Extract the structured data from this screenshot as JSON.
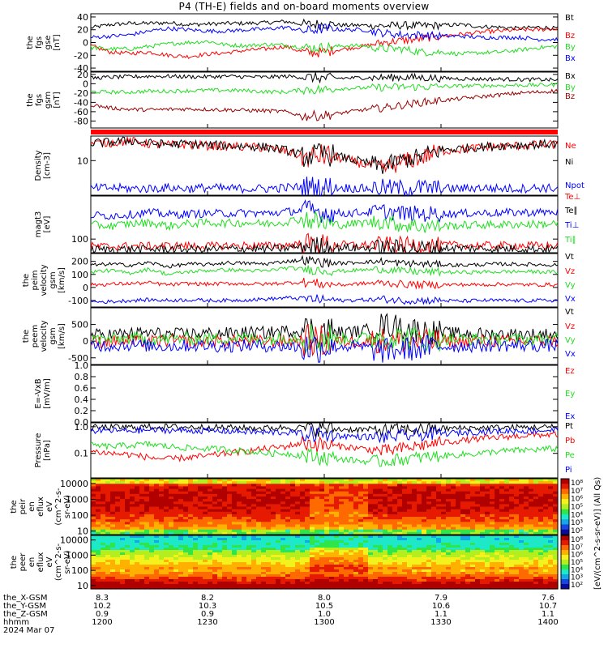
{
  "title": "P4 (TH-E) fields and on-board moments overview",
  "footer": {
    "rows": [
      {
        "label": "the_X-GSM",
        "values": [
          "8.3",
          "8.2",
          "8.0",
          "7.9",
          "7.6"
        ]
      },
      {
        "label": "the_Y-GSM",
        "values": [
          "10.2",
          "10.3",
          "10.5",
          "10.6",
          "10.7"
        ]
      },
      {
        "label": "the_Z-GSM",
        "values": [
          "0.9",
          "0.9",
          "1.0",
          "1.1",
          "1.1"
        ]
      },
      {
        "label": "hhmm",
        "values": [
          "1200",
          "1230",
          "1300",
          "1330",
          "1400"
        ]
      }
    ],
    "date": "2024 Mar 07"
  },
  "colors": {
    "black": "#000000",
    "red": "#ff0000",
    "green": "#22dd22",
    "blue": "#0000ff",
    "darkred": "#990000"
  },
  "chart_data": [
    {
      "type": "line",
      "id": "fgs_gse",
      "ylabel": [
        "the",
        "fgs",
        "gse",
        "[nT]"
      ],
      "ylim": [
        -45,
        45
      ],
      "ticks": [
        "40",
        "20",
        "0",
        "-20",
        "-40"
      ],
      "series": [
        {
          "name": "Bt",
          "color": "black",
          "values": [
            23,
            28,
            30,
            30,
            31,
            28,
            29,
            30,
            30,
            31,
            33,
            28,
            29,
            27,
            27,
            26,
            27,
            26,
            27,
            28,
            25,
            24,
            22,
            24,
            22
          ]
        },
        {
          "name": "Bz",
          "color": "red",
          "values": [
            -5,
            -15,
            -17,
            -15,
            -20,
            -22,
            -18,
            -16,
            -12,
            -10,
            -6,
            -16,
            -15,
            -10,
            -6,
            0,
            3,
            6,
            10,
            13,
            16,
            18,
            20,
            20,
            22
          ]
        },
        {
          "name": "By",
          "color": "green",
          "values": [
            -8,
            -10,
            -10,
            -6,
            -2,
            0,
            2,
            -4,
            -5,
            -3,
            -4,
            -8,
            -8,
            -5,
            -5,
            -10,
            -10,
            -15,
            -15,
            -18,
            -16,
            -15,
            -12,
            -8,
            -6
          ]
        },
        {
          "name": "Bx",
          "color": "blue",
          "values": [
            8,
            10,
            12,
            18,
            22,
            20,
            18,
            18,
            20,
            21,
            24,
            18,
            22,
            20,
            20,
            15,
            12,
            12,
            10,
            10,
            8,
            8,
            8,
            5,
            5
          ]
        }
      ]
    },
    {
      "type": "line",
      "id": "fgs_gsm",
      "ylabel": [
        "the",
        "fgs",
        "gsm",
        "[nT]"
      ],
      "ylim": [
        -95,
        25
      ],
      "ticks": [
        "20",
        "0",
        "-20",
        "-40",
        "-60",
        "-80"
      ],
      "series": [
        {
          "name": "Bx",
          "color": "black",
          "values": [
            12,
            14,
            15,
            16,
            16,
            15,
            15,
            16,
            15,
            14,
            16,
            14,
            12,
            12,
            13,
            13,
            14,
            13,
            12,
            11,
            10,
            10,
            9,
            9,
            8
          ]
        },
        {
          "name": "By",
          "color": "green",
          "values": [
            -17,
            -18,
            -18,
            -16,
            -16,
            -15,
            -14,
            -14,
            -15,
            -17,
            -18,
            -12,
            -13,
            -10,
            -9,
            -8,
            -7,
            -7,
            -6,
            -5,
            -4,
            -4,
            -3,
            -3,
            -2
          ]
        },
        {
          "name": "Bz",
          "color": "darkred",
          "values": [
            -45,
            -52,
            -55,
            -56,
            -55,
            -54,
            -55,
            -56,
            -57,
            -58,
            -60,
            -70,
            -68,
            -62,
            -56,
            -52,
            -46,
            -40,
            -36,
            -32,
            -28,
            -24,
            -20,
            -18,
            -15
          ]
        }
      ]
    },
    {
      "type": "line",
      "id": "density",
      "ylabel": [
        "Density",
        "[cm-3]"
      ],
      "ylog": true,
      "ylim": [
        1.2,
        45
      ],
      "ticks": [
        "10"
      ],
      "series": [
        {
          "name": "Ne",
          "color": "red",
          "values": [
            28,
            30,
            33,
            28,
            26,
            27,
            25,
            24,
            23,
            22,
            18,
            12,
            14,
            11,
            8,
            6,
            9,
            12,
            18,
            20,
            22,
            24,
            25,
            26,
            27
          ]
        },
        {
          "name": "Ni",
          "color": "black",
          "values": [
            29,
            31,
            34,
            29,
            27,
            28,
            26,
            25,
            24,
            23,
            19,
            13,
            15,
            12,
            9,
            7,
            10,
            13,
            19,
            21,
            23,
            25,
            26,
            27,
            28
          ]
        },
        {
          "name": "Npot",
          "color": "blue",
          "values": [
            1.8,
            1.9,
            1.8,
            1.8,
            1.9,
            1.8,
            1.9,
            1.8,
            1.8,
            1.8,
            1.9,
            2.0,
            1.9,
            1.9,
            1.8,
            1.9,
            1.8,
            1.9,
            1.8,
            1.8,
            1.9,
            1.8,
            1.8,
            1.9,
            1.8
          ]
        }
      ]
    },
    {
      "type": "line",
      "id": "temperature",
      "ylabel": [
        "magt3",
        "[eV]"
      ],
      "ylog": true,
      "ylim": [
        40,
        1800
      ],
      "ticks": [
        "100"
      ],
      "series": [
        {
          "name": "Te⊥",
          "color": "red",
          "values": [
            62,
            60,
            63,
            62,
            64,
            63,
            62,
            64,
            65,
            63,
            66,
            75,
            70,
            68,
            66,
            70,
            68,
            66,
            67,
            66,
            65,
            64,
            65,
            64,
            63
          ]
        },
        {
          "name": "Te∥",
          "color": "black",
          "values": [
            50,
            49,
            51,
            50,
            52,
            51,
            50,
            52,
            53,
            51,
            54,
            62,
            58,
            56,
            54,
            58,
            56,
            54,
            55,
            54,
            53,
            52,
            53,
            52,
            51
          ]
        },
        {
          "name": "Ti⊥",
          "color": "blue",
          "values": [
            500,
            480,
            520,
            600,
            520,
            540,
            560,
            560,
            580,
            560,
            620,
            700,
            600,
            560,
            600,
            640,
            560,
            540,
            540,
            560,
            580,
            580,
            600,
            600,
            620
          ]
        },
        {
          "name": "Ti∥",
          "color": "green",
          "values": [
            260,
            240,
            280,
            300,
            240,
            280,
            300,
            290,
            300,
            280,
            320,
            400,
            280,
            260,
            300,
            330,
            260,
            240,
            240,
            250,
            260,
            260,
            270,
            270,
            280
          ]
        }
      ]
    },
    {
      "type": "line",
      "id": "peim_velocity",
      "ylabel": [
        "the",
        "peim",
        "velocity",
        "gsm",
        "[km/s]"
      ],
      "ylim": [
        -150,
        260
      ],
      "ticks": [
        "200",
        "100",
        "0",
        "-100"
      ],
      "series": [
        {
          "name": "Vt",
          "color": "black",
          "values": [
            170,
            180,
            170,
            190,
            160,
            180,
            175,
            190,
            185,
            180,
            200,
            210,
            190,
            185,
            195,
            200,
            185,
            180,
            175,
            170,
            175,
            180,
            178,
            175,
            172
          ]
        },
        {
          "name": "Vz",
          "color": "red",
          "values": [
            20,
            25,
            30,
            35,
            20,
            30,
            25,
            30,
            28,
            25,
            35,
            40,
            25,
            20,
            30,
            35,
            25,
            20,
            20,
            22,
            20,
            25,
            22,
            20,
            22
          ]
        },
        {
          "name": "Vy",
          "color": "green",
          "values": [
            120,
            130,
            110,
            140,
            100,
            120,
            130,
            135,
            130,
            125,
            150,
            140,
            130,
            125,
            135,
            140,
            125,
            120,
            118,
            115,
            118,
            120,
            122,
            120,
            118
          ]
        },
        {
          "name": "Vx",
          "color": "blue",
          "values": [
            -110,
            -110,
            -100,
            -95,
            -100,
            -95,
            -100,
            -100,
            -95,
            -90,
            -80,
            -85,
            -95,
            -100,
            -95,
            -90,
            -100,
            -100,
            -100,
            -105,
            -100,
            -100,
            -102,
            -100,
            -100
          ]
        }
      ]
    },
    {
      "type": "line",
      "id": "peem_velocity",
      "ylabel": [
        "the",
        "peem",
        "velocity",
        "gsm",
        "[km/s]"
      ],
      "ylim": [
        -700,
        1000
      ],
      "ticks": [
        "500",
        "0",
        "-500"
      ],
      "series": [
        {
          "name": "Vt",
          "color": "black",
          "values": [
            180,
            200,
            220,
            250,
            200,
            220,
            240,
            230,
            260,
            250,
            300,
            320,
            280,
            260,
            300,
            500,
            420,
            300,
            250,
            230,
            220,
            210,
            200,
            210,
            200
          ]
        },
        {
          "name": "Vz",
          "color": "red",
          "values": [
            -20,
            -10,
            0,
            -10,
            10,
            0,
            -5,
            10,
            0,
            -10,
            0,
            20,
            0,
            -10,
            0,
            30,
            10,
            0,
            -10,
            -5,
            0,
            -5,
            0,
            5,
            0
          ]
        },
        {
          "name": "Vy",
          "color": "green",
          "values": [
            60,
            50,
            80,
            70,
            60,
            80,
            70,
            90,
            80,
            60,
            100,
            120,
            80,
            70,
            90,
            140,
            110,
            80,
            70,
            60,
            60,
            55,
            50,
            55,
            50
          ]
        },
        {
          "name": "Vx",
          "color": "blue",
          "values": [
            -120,
            -130,
            -110,
            -140,
            -150,
            -130,
            -140,
            -150,
            -130,
            -140,
            -150,
            -200,
            -160,
            -150,
            -180,
            -300,
            -250,
            -200,
            -160,
            -150,
            -140,
            -130,
            -130,
            -140,
            -130
          ]
        }
      ]
    },
    {
      "type": "line",
      "id": "efield",
      "ylabel": [
        "E=-VxB",
        "[mV/m]"
      ],
      "ylim": [
        0,
        1
      ],
      "ticks": [
        "1.0",
        "0.8",
        "0.6",
        "0.4",
        "0.2",
        "0.0"
      ],
      "series": [
        {
          "name": "Ez",
          "color": "red",
          "values": []
        },
        {
          "name": "Ey",
          "color": "green",
          "values": []
        },
        {
          "name": "Ex",
          "color": "blue",
          "values": []
        }
      ]
    },
    {
      "type": "line",
      "id": "pressure",
      "ylabel": [
        "Pressure",
        "[nPa]"
      ],
      "ylog": true,
      "ylim": [
        0.012,
        1.4
      ],
      "ticks": [
        "1.0",
        "0.1"
      ],
      "series": [
        {
          "name": "Pt",
          "color": "black",
          "values": [
            0.92,
            0.95,
            0.95,
            1.0,
            0.98,
            0.97,
            0.95,
            0.93,
            0.9,
            0.88,
            0.95,
            0.9,
            0.85,
            0.8,
            0.78,
            0.75,
            0.78,
            0.8,
            0.85,
            0.88,
            0.9,
            0.92,
            0.94,
            0.95,
            0.96
          ]
        },
        {
          "name": "Pb",
          "color": "red",
          "values": [
            0.12,
            0.1,
            0.09,
            0.07,
            0.06,
            0.07,
            0.08,
            0.1,
            0.12,
            0.15,
            0.18,
            0.25,
            0.2,
            0.18,
            0.15,
            0.12,
            0.15,
            0.2,
            0.25,
            0.3,
            0.35,
            0.4,
            0.45,
            0.5,
            0.5
          ]
        },
        {
          "name": "Pe",
          "color": "green",
          "values": [
            0.2,
            0.18,
            0.2,
            0.22,
            0.18,
            0.16,
            0.15,
            0.14,
            0.12,
            0.1,
            0.1,
            0.08,
            0.07,
            0.06,
            0.05,
            0.05,
            0.06,
            0.07,
            0.08,
            0.09,
            0.1,
            0.12,
            0.13,
            0.14,
            0.15
          ]
        },
        {
          "name": "Pi",
          "color": "blue",
          "values": [
            0.7,
            0.72,
            0.7,
            0.75,
            0.74,
            0.72,
            0.7,
            0.68,
            0.66,
            0.6,
            0.62,
            0.55,
            0.5,
            0.45,
            0.42,
            0.4,
            0.45,
            0.5,
            0.55,
            0.6,
            0.65,
            0.68,
            0.7,
            0.72,
            0.74
          ]
        }
      ]
    },
    {
      "type": "heatmap",
      "id": "peir_eflux",
      "ylabel": [
        "the",
        "peir",
        "en",
        "eflux",
        "eV",
        "(cm^2-s-",
        "sr-eV)"
      ],
      "ylog": true,
      "ylim": [
        6,
        20000
      ],
      "ticks": [
        "10000",
        "1000",
        "100",
        "10"
      ]
    },
    {
      "type": "heatmap",
      "id": "peer_eflux",
      "ylabel": [
        "the",
        "peer",
        "en",
        "eflux",
        "eV",
        "(cm^2-s-",
        "sr-eV)"
      ],
      "ylog": true,
      "ylim": [
        6,
        20000
      ],
      "ticks": [
        "10000",
        "1000",
        "100",
        "10"
      ]
    }
  ],
  "colorbars": [
    {
      "ticks": [
        "10⁸",
        "10⁷",
        "10⁶",
        "10⁵",
        "10⁴",
        "10³",
        "10²"
      ]
    },
    {
      "ticks": [
        "10⁸",
        "10⁷",
        "10⁶",
        "10⁵",
        "10⁴",
        "10³",
        "10²"
      ]
    }
  ],
  "colorbar_label": "[eV/(cm^2-s-sr-eV)] (All Qs)"
}
